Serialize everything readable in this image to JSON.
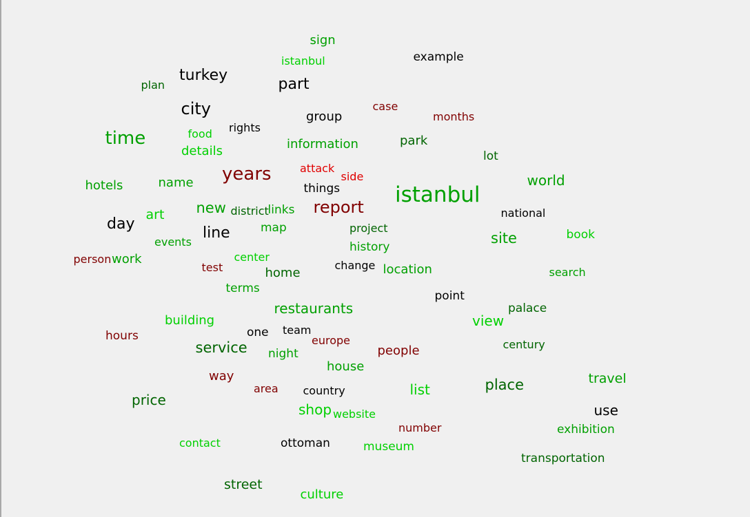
{
  "colors": {
    "background": "#f0f0f0",
    "black": "#000000",
    "dark_green": "#006400",
    "green": "#00a000",
    "light_green": "#00d000",
    "maroon": "#800000",
    "red": "#e00000"
  },
  "words": [
    {
      "text": "sign",
      "color": "#00a000"
    },
    {
      "text": "istanbul",
      "color": "#00d000"
    },
    {
      "text": "example",
      "color": "#000000"
    },
    {
      "text": "plan",
      "color": "#006400"
    },
    {
      "text": "turkey",
      "color": "#000000"
    },
    {
      "text": "part",
      "color": "#000000"
    },
    {
      "text": "city",
      "color": "#000000"
    },
    {
      "text": "case",
      "color": "#800000"
    },
    {
      "text": "group",
      "color": "#000000"
    },
    {
      "text": "months",
      "color": "#800000"
    },
    {
      "text": "rights",
      "color": "#000000"
    },
    {
      "text": "food",
      "color": "#00d000"
    },
    {
      "text": "time",
      "color": "#00a000"
    },
    {
      "text": "information",
      "color": "#00a000"
    },
    {
      "text": "park",
      "color": "#006400"
    },
    {
      "text": "details",
      "color": "#00d000"
    },
    {
      "text": "lot",
      "color": "#006400"
    },
    {
      "text": "attack",
      "color": "#e00000"
    },
    {
      "text": "years",
      "color": "#800000"
    },
    {
      "text": "side",
      "color": "#e00000"
    },
    {
      "text": "world",
      "color": "#00a000"
    },
    {
      "text": "hotels",
      "color": "#00a000"
    },
    {
      "text": "name",
      "color": "#00a000"
    },
    {
      "text": "things",
      "color": "#000000"
    },
    {
      "text": "istanbul",
      "color": "#00a000"
    },
    {
      "text": "art",
      "color": "#00d000"
    },
    {
      "text": "new",
      "color": "#00a000"
    },
    {
      "text": "district",
      "color": "#006400"
    },
    {
      "text": "links",
      "color": "#00a000"
    },
    {
      "text": "report",
      "color": "#800000"
    },
    {
      "text": "national",
      "color": "#000000"
    },
    {
      "text": "day",
      "color": "#000000"
    },
    {
      "text": "map",
      "color": "#00a000"
    },
    {
      "text": "project",
      "color": "#006400"
    },
    {
      "text": "line",
      "color": "#000000"
    },
    {
      "text": "book",
      "color": "#00d000"
    },
    {
      "text": "site",
      "color": "#00a000"
    },
    {
      "text": "events",
      "color": "#00a000"
    },
    {
      "text": "history",
      "color": "#00a000"
    },
    {
      "text": "person",
      "color": "#800000"
    },
    {
      "text": "work",
      "color": "#00a000"
    },
    {
      "text": "center",
      "color": "#00d000"
    },
    {
      "text": "test",
      "color": "#800000"
    },
    {
      "text": "change",
      "color": "#000000"
    },
    {
      "text": "location",
      "color": "#00a000"
    },
    {
      "text": "home",
      "color": "#006400"
    },
    {
      "text": "search",
      "color": "#00a000"
    },
    {
      "text": "terms",
      "color": "#00a000"
    },
    {
      "text": "point",
      "color": "#000000"
    },
    {
      "text": "restaurants",
      "color": "#00a000"
    },
    {
      "text": "palace",
      "color": "#006400"
    },
    {
      "text": "view",
      "color": "#00d000"
    },
    {
      "text": "building",
      "color": "#00d000"
    },
    {
      "text": "team",
      "color": "#000000"
    },
    {
      "text": "hours",
      "color": "#800000"
    },
    {
      "text": "one",
      "color": "#000000"
    },
    {
      "text": "europe",
      "color": "#800000"
    },
    {
      "text": "century",
      "color": "#006400"
    },
    {
      "text": "service",
      "color": "#006400"
    },
    {
      "text": "night",
      "color": "#00a000"
    },
    {
      "text": "people",
      "color": "#800000"
    },
    {
      "text": "house",
      "color": "#00a000"
    },
    {
      "text": "way",
      "color": "#800000"
    },
    {
      "text": "travel",
      "color": "#00a000"
    },
    {
      "text": "list",
      "color": "#00d000"
    },
    {
      "text": "place",
      "color": "#006400"
    },
    {
      "text": "area",
      "color": "#800000"
    },
    {
      "text": "country",
      "color": "#000000"
    },
    {
      "text": "price",
      "color": "#006400"
    },
    {
      "text": "shop",
      "color": "#00d000"
    },
    {
      "text": "website",
      "color": "#00d000"
    },
    {
      "text": "use",
      "color": "#000000"
    },
    {
      "text": "number",
      "color": "#800000"
    },
    {
      "text": "exhibition",
      "color": "#00a000"
    },
    {
      "text": "contact",
      "color": "#00d000"
    },
    {
      "text": "ottoman",
      "color": "#000000"
    },
    {
      "text": "museum",
      "color": "#00d000"
    },
    {
      "text": "transportation",
      "color": "#006400"
    },
    {
      "text": "street",
      "color": "#006400"
    },
    {
      "text": "culture",
      "color": "#00d000"
    }
  ]
}
